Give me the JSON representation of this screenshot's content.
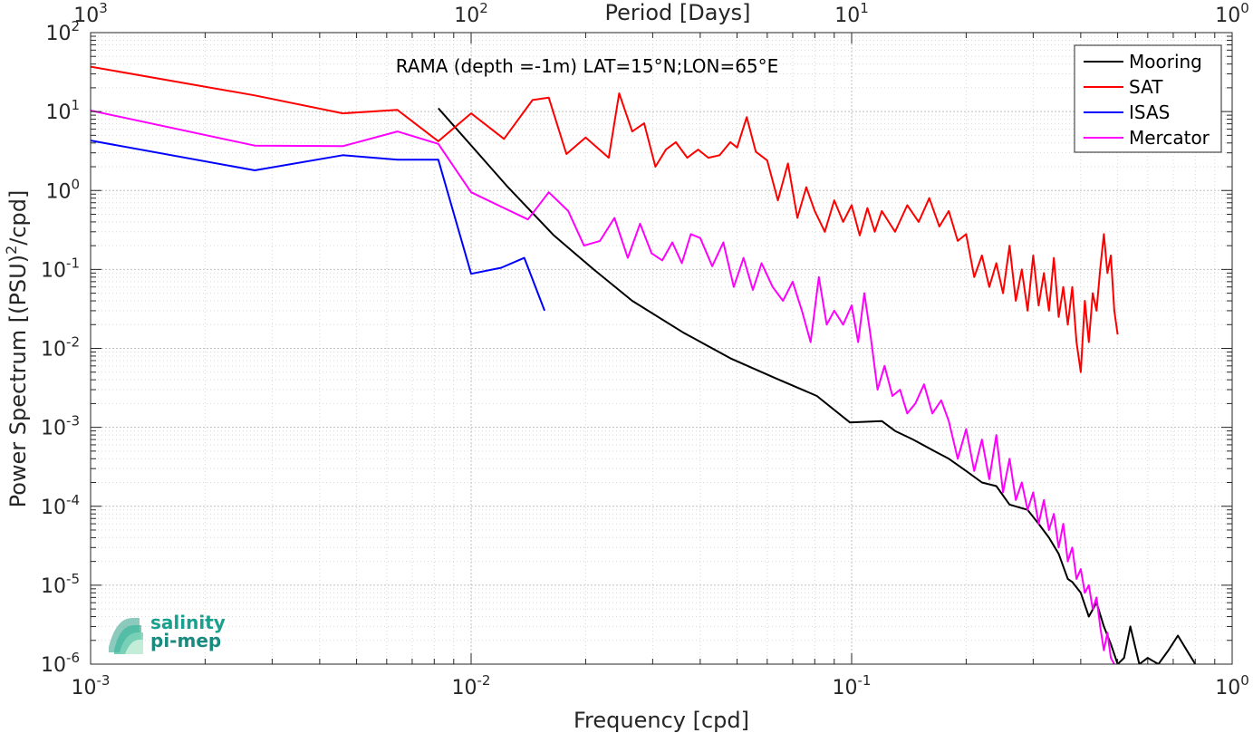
{
  "chart_data": {
    "type": "line",
    "title": "RAMA (depth =-1m) LAT=15°N;LON=65°E",
    "xlabel": "Frequency [cpd]",
    "ylabel": "Power Spectrum [(PSU)",
    "ylabel_sup": "2",
    "ylabel_tail": "/cpd]",
    "x2label": "Period [Days]",
    "xscale": "log",
    "yscale": "log",
    "xlim": [
      0.001,
      1
    ],
    "ylim": [
      1e-06,
      100
    ],
    "grid": true,
    "minor_grid": true,
    "legend_position": "top-right",
    "x_ticks": [
      {
        "value": 0.001,
        "base": "10",
        "exp": "-3"
      },
      {
        "value": 0.01,
        "base": "10",
        "exp": "-2"
      },
      {
        "value": 0.1,
        "base": "10",
        "exp": "-1"
      },
      {
        "value": 1,
        "base": "10",
        "exp": "0"
      }
    ],
    "x2_ticks": [
      {
        "value": 0.001,
        "base": "10",
        "exp": "3"
      },
      {
        "value": 0.01,
        "base": "10",
        "exp": "2"
      },
      {
        "value": 0.1,
        "base": "10",
        "exp": "1"
      },
      {
        "value": 1,
        "base": "10",
        "exp": "0"
      }
    ],
    "y_ticks": [
      {
        "value": 1e-06,
        "base": "10",
        "exp": "-6"
      },
      {
        "value": 1e-05,
        "base": "10",
        "exp": "-5"
      },
      {
        "value": 0.0001,
        "base": "10",
        "exp": "-4"
      },
      {
        "value": 0.001,
        "base": "10",
        "exp": "-3"
      },
      {
        "value": 0.01,
        "base": "10",
        "exp": "-2"
      },
      {
        "value": 0.1,
        "base": "10",
        "exp": "-1"
      },
      {
        "value": 1,
        "base": "10",
        "exp": "0"
      },
      {
        "value": 10,
        "base": "10",
        "exp": "1"
      },
      {
        "value": 100,
        "base": "10",
        "exp": "2"
      }
    ],
    "series": [
      {
        "name": "Mooring",
        "color": "#000000",
        "x": [
          0.0082,
          0.0125,
          0.0165,
          0.021,
          0.0265,
          0.036,
          0.048,
          0.063,
          0.081,
          0.099,
          0.12,
          0.13,
          0.145,
          0.165,
          0.18,
          0.2,
          0.22,
          0.24,
          0.26,
          0.29,
          0.31,
          0.33,
          0.35,
          0.37,
          0.38,
          0.4,
          0.42,
          0.44,
          0.46,
          0.48,
          0.5,
          0.52,
          0.54,
          0.57,
          0.6,
          0.64,
          0.68,
          0.72,
          0.76,
          0.8
        ],
        "y": [
          11,
          1.1,
          0.27,
          0.1,
          0.04,
          0.016,
          0.0075,
          0.0042,
          0.0025,
          0.00115,
          0.0012,
          0.0009,
          0.0007,
          0.0005,
          0.0004,
          0.00028,
          0.0002,
          0.00018,
          0.000105,
          9e-05,
          6e-05,
          4e-05,
          2.5e-05,
          1.2e-05,
          1.1e-05,
          8e-06,
          4e-06,
          6e-06,
          3e-06,
          1.8e-06,
          1e-06,
          1.2e-06,
          3e-06,
          1e-06,
          1.2e-06,
          1e-06,
          1.5e-06,
          2.3e-06,
          1.5e-06,
          1e-06
        ]
      },
      {
        "name": "SAT",
        "color": "#ff0000",
        "x": [
          0.001,
          0.0027,
          0.0046,
          0.0064,
          0.0082,
          0.01,
          0.0122,
          0.0145,
          0.016,
          0.0178,
          0.02,
          0.023,
          0.0245,
          0.0265,
          0.0285,
          0.0305,
          0.0325,
          0.0345,
          0.037,
          0.0395,
          0.042,
          0.045,
          0.048,
          0.05,
          0.053,
          0.056,
          0.06,
          0.064,
          0.068,
          0.072,
          0.076,
          0.08,
          0.085,
          0.09,
          0.095,
          0.1,
          0.105,
          0.11,
          0.115,
          0.12,
          0.13,
          0.14,
          0.15,
          0.16,
          0.17,
          0.18,
          0.19,
          0.2,
          0.21,
          0.22,
          0.23,
          0.24,
          0.25,
          0.26,
          0.27,
          0.28,
          0.29,
          0.3,
          0.31,
          0.32,
          0.33,
          0.34,
          0.35,
          0.36,
          0.37,
          0.38,
          0.39,
          0.4,
          0.41,
          0.42,
          0.43,
          0.44,
          0.45,
          0.46,
          0.47,
          0.48,
          0.49,
          0.5
        ],
        "y": [
          37,
          16,
          9.5,
          10.5,
          4.2,
          9.5,
          4.5,
          14,
          15,
          2.9,
          4.7,
          2.6,
          17,
          5.6,
          7.1,
          2,
          3.3,
          4.1,
          2.6,
          3.3,
          2.6,
          2.8,
          4.1,
          3.5,
          8.5,
          3.1,
          2.4,
          0.75,
          2.2,
          0.45,
          1.1,
          0.55,
          0.3,
          0.75,
          0.4,
          0.65,
          0.27,
          0.6,
          0.3,
          0.55,
          0.3,
          0.65,
          0.4,
          0.8,
          0.35,
          0.55,
          0.23,
          0.28,
          0.08,
          0.15,
          0.06,
          0.12,
          0.05,
          0.2,
          0.04,
          0.1,
          0.03,
          0.15,
          0.035,
          0.09,
          0.03,
          0.14,
          0.025,
          0.06,
          0.02,
          0.06,
          0.012,
          0.005,
          0.04,
          0.012,
          0.05,
          0.03,
          0.1,
          0.28,
          0.09,
          0.15,
          0.03,
          0.015
        ]
      },
      {
        "name": "ISAS",
        "color": "#0000ff",
        "x": [
          0.001,
          0.0027,
          0.0046,
          0.0064,
          0.0082,
          0.01,
          0.012,
          0.0138,
          0.0156
        ],
        "y": [
          4.3,
          1.8,
          2.8,
          2.45,
          2.45,
          0.088,
          0.105,
          0.14,
          0.03
        ]
      },
      {
        "name": "Mercator",
        "color": "#ff00ff",
        "x": [
          0.001,
          0.0027,
          0.0046,
          0.0064,
          0.0082,
          0.01,
          0.0122,
          0.0141,
          0.016,
          0.018,
          0.0198,
          0.0218,
          0.0238,
          0.0258,
          0.0278,
          0.0298,
          0.0318,
          0.0338,
          0.0358,
          0.0378,
          0.04,
          0.043,
          0.046,
          0.049,
          0.052,
          0.055,
          0.058,
          0.062,
          0.066,
          0.07,
          0.074,
          0.078,
          0.082,
          0.086,
          0.09,
          0.095,
          0.1,
          0.104,
          0.108,
          0.112,
          0.117,
          0.122,
          0.128,
          0.134,
          0.14,
          0.147,
          0.155,
          0.163,
          0.172,
          0.18,
          0.19,
          0.2,
          0.21,
          0.22,
          0.23,
          0.24,
          0.25,
          0.26,
          0.27,
          0.28,
          0.29,
          0.3,
          0.31,
          0.32,
          0.33,
          0.34,
          0.35,
          0.36,
          0.37,
          0.38,
          0.39,
          0.4,
          0.41,
          0.42,
          0.43,
          0.44,
          0.45,
          0.46,
          0.47,
          0.48,
          0.49
        ],
        "y": [
          10.3,
          3.7,
          3.65,
          5.6,
          3.9,
          0.95,
          0.6,
          0.43,
          0.95,
          0.55,
          0.2,
          0.23,
          0.45,
          0.14,
          0.38,
          0.16,
          0.13,
          0.22,
          0.12,
          0.28,
          0.25,
          0.11,
          0.22,
          0.06,
          0.14,
          0.055,
          0.12,
          0.06,
          0.04,
          0.07,
          0.03,
          0.012,
          0.08,
          0.02,
          0.03,
          0.02,
          0.035,
          0.012,
          0.05,
          0.015,
          0.003,
          0.006,
          0.0025,
          0.003,
          0.0015,
          0.002,
          0.0035,
          0.0015,
          0.0022,
          0.0012,
          0.0004,
          0.00095,
          0.00028,
          0.0007,
          0.00022,
          0.0008,
          0.00015,
          0.0004,
          0.00012,
          0.0002,
          9e-05,
          0.00015,
          6e-05,
          0.00012,
          5e-05,
          8e-05,
          3e-05,
          6e-05,
          2e-05,
          3e-05,
          1.2e-05,
          1.6e-05,
          8e-06,
          1e-05,
          5e-06,
          7e-06,
          3e-06,
          1.5e-06,
          2.5e-06,
          1.2e-06,
          1e-06
        ]
      }
    ]
  },
  "logo": {
    "line1": "salinity",
    "line2": "pi-mep",
    "color": "#1aa08e"
  }
}
